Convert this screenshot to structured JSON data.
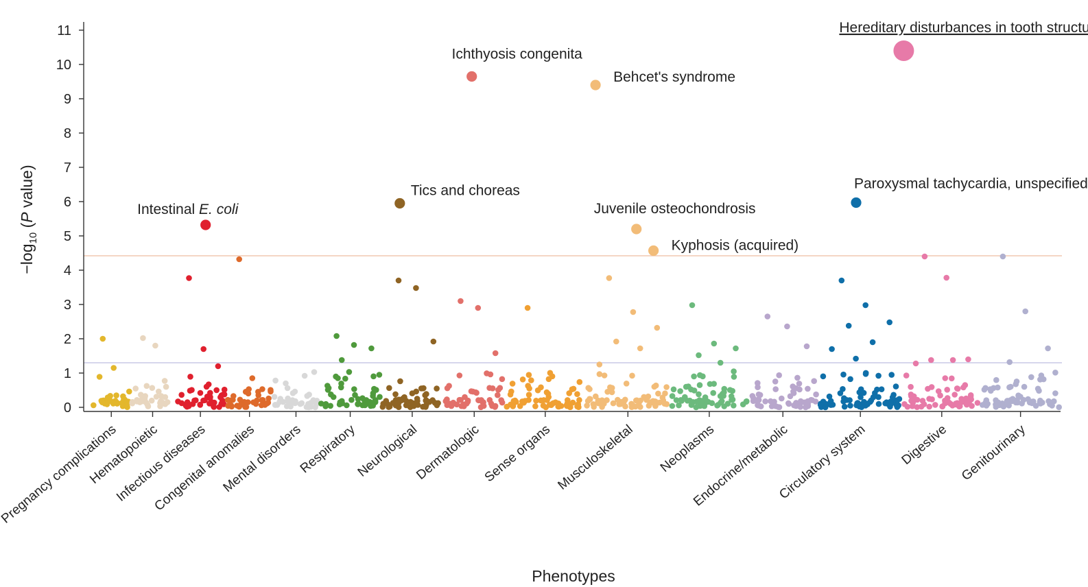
{
  "chart_data": {
    "type": "scatter",
    "title": "",
    "xlabel": "Phenotypes",
    "ylabel_prefix": "−log",
    "ylabel_sub": "10",
    "ylabel_open": " (",
    "ylabel_p": "P",
    "ylabel_close": " value)",
    "ylim": [
      0,
      11
    ],
    "yticks": [
      0,
      1,
      2,
      3,
      4,
      5,
      6,
      7,
      8,
      9,
      10,
      11
    ],
    "thresholds": [
      {
        "value": 4.42,
        "color": "#f0c8b0"
      },
      {
        "value": 1.3,
        "color": "#c9c9e6"
      }
    ],
    "categories": [
      {
        "name": "Pregnancy complications",
        "color": "#e3b72c",
        "count": 30,
        "highlights": [
          2.0,
          1.15
        ]
      },
      {
        "name": "Hematopoietic",
        "color": "#e8d6bf",
        "count": 34,
        "highlights": [
          2.02,
          1.8
        ]
      },
      {
        "name": "Infectious diseases",
        "color": "#e0202e",
        "count": 40,
        "highlights": [
          3.77,
          1.7,
          1.2
        ]
      },
      {
        "name": "Congenital anomalies",
        "color": "#de6a2b",
        "count": 36,
        "highlights": [
          4.32,
          0.85
        ]
      },
      {
        "name": "Mental disorders",
        "color": "#d8d8d8",
        "count": 36,
        "highlights": [
          0.7
        ]
      },
      {
        "name": "Respiratory",
        "color": "#4f9a3c",
        "count": 48,
        "highlights": [
          2.08,
          1.82,
          1.72,
          1.38
        ]
      },
      {
        "name": "Neurological",
        "color": "#8f6424",
        "count": 48,
        "highlights": [
          3.7,
          3.48,
          1.92
        ]
      },
      {
        "name": "Dermatologic",
        "color": "#e2706a",
        "count": 48,
        "highlights": [
          3.1,
          2.9,
          1.58
        ]
      },
      {
        "name": "Sense organs",
        "color": "#f0a033",
        "count": 62,
        "highlights": [
          2.9
        ]
      },
      {
        "name": "Musculoskeletal",
        "color": "#f2bc78",
        "count": 66,
        "highlights": [
          3.77,
          2.78,
          2.32,
          1.92,
          1.72,
          1.25
        ]
      },
      {
        "name": "Neoplasms",
        "color": "#6cba7d",
        "count": 60,
        "highlights": [
          2.98,
          1.86,
          1.72,
          1.52,
          1.3
        ]
      },
      {
        "name": "Endocrine/metabolic",
        "color": "#b8a6cc",
        "count": 54,
        "highlights": [
          2.65,
          2.36,
          1.78
        ]
      },
      {
        "name": "Circulatory system",
        "color": "#0f6fa9",
        "count": 66,
        "highlights": [
          3.7,
          2.98,
          2.48,
          2.38,
          1.9,
          1.7,
          1.42
        ]
      },
      {
        "name": "Digestive",
        "color": "#e77aa8",
        "count": 60,
        "highlights": [
          4.4,
          3.78,
          1.4,
          1.38,
          1.38,
          1.28
        ]
      },
      {
        "name": "Genitourinary",
        "color": "#b0b0cf",
        "count": 62,
        "highlights": [
          4.4,
          2.8,
          1.72,
          1.32
        ]
      }
    ],
    "annotated_points": [
      {
        "label": "Intestinal ",
        "label_italic": "E. coli",
        "category": "Infectious diseases",
        "y": 5.32,
        "size": "medium"
      },
      {
        "label": "Tics and choreas",
        "category": "Neurological",
        "y": 5.95,
        "size": "medium"
      },
      {
        "label": "Ichthyosis congenita",
        "category": "Dermatologic",
        "y": 9.65,
        "size": "medium"
      },
      {
        "label": "Behcet's syndrome",
        "category": "Musculoskeletal",
        "y": 9.4,
        "size": "medium"
      },
      {
        "label": "Juvenile osteochondrosis",
        "category": "Musculoskeletal",
        "y": 5.2,
        "size": "medium"
      },
      {
        "label": "Kyphosis (acquired)",
        "category": "Musculoskeletal",
        "y": 4.57,
        "size": "medium"
      },
      {
        "label": "Paroxysmal tachycardia, unspecified",
        "category": "Circulatory system",
        "y": 5.97,
        "size": "medium"
      },
      {
        "label": "Hereditary disturbances in tooth structure",
        "category": "Digestive",
        "y": 10.4,
        "size": "large",
        "underlined": true
      }
    ]
  }
}
